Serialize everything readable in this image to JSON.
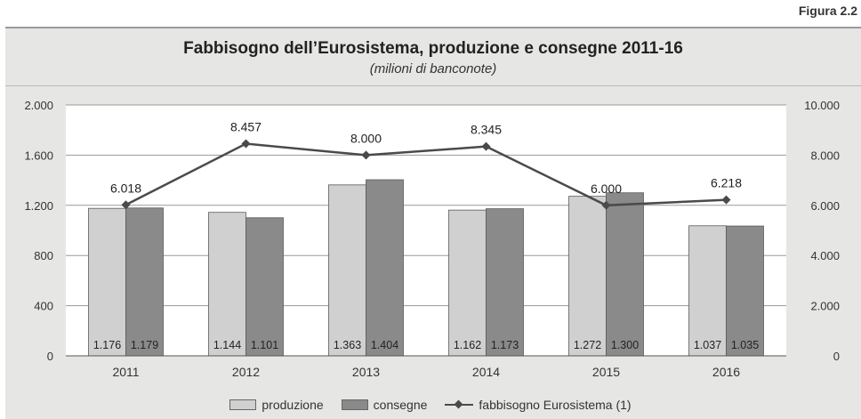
{
  "figure_label": "Figura 2.2",
  "chart_data": {
    "type": "bar",
    "title": "Fabbisogno dell’Eurosistema, produzione e consegne 2011-16",
    "subtitle": "(milioni di banconote)",
    "categories": [
      "2011",
      "2012",
      "2013",
      "2014",
      "2015",
      "2016"
    ],
    "series": [
      {
        "name": "produzione",
        "kind": "bar",
        "axis": "left",
        "color": "#d0d0d0",
        "values": [
          1176,
          1144,
          1363,
          1162,
          1272,
          1037
        ],
        "labels": [
          "1.176",
          "1.144",
          "1.363",
          "1.162",
          "1.272",
          "1.037"
        ]
      },
      {
        "name": "consegne",
        "kind": "bar",
        "axis": "left",
        "color": "#8a8a8a",
        "values": [
          1179,
          1101,
          1404,
          1173,
          1300,
          1035
        ],
        "labels": [
          "1.179",
          "1.101",
          "1.404",
          "1.173",
          "1.300",
          "1.035"
        ]
      },
      {
        "name": "fabbisogno Eurosistema (1)",
        "kind": "line",
        "axis": "right",
        "color": "#4a4a4a",
        "values": [
          6018,
          8457,
          8000,
          8345,
          6000,
          6218
        ],
        "labels": [
          "6.018",
          "8.457",
          "8.000",
          "8.345",
          "6.000",
          "6.218"
        ]
      }
    ],
    "y_left": {
      "min": 0,
      "max": 2000,
      "ticks": [
        0,
        400,
        800,
        1200,
        1600,
        2000
      ],
      "tick_labels": [
        "0",
        "400",
        "800",
        "1.200",
        "1.600",
        "2.000"
      ]
    },
    "y_right": {
      "min": 0,
      "max": 10000,
      "ticks": [
        0,
        2000,
        4000,
        6000,
        8000,
        10000
      ],
      "tick_labels": [
        "0",
        "2.000",
        "4.000",
        "6.000",
        "8.000",
        "10.000"
      ]
    },
    "grid": true,
    "legend_position": "bottom"
  }
}
